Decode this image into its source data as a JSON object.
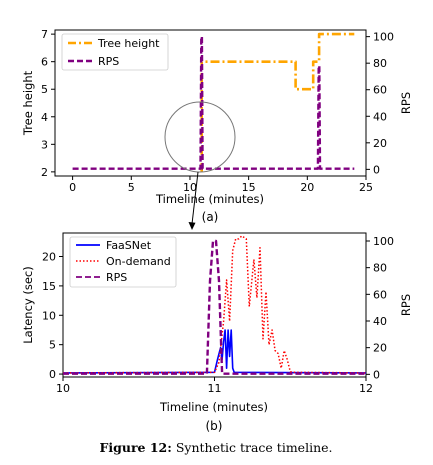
{
  "caption": {
    "label": "Figure 12:",
    "text": " Synthetic trace timeline."
  },
  "colors": {
    "tree_height": "#FFA500",
    "rps": "#800080",
    "faasnet": "#0000FF",
    "on_demand": "#FF0000"
  },
  "chart_data": [
    {
      "type": "line",
      "panel_label": "(a)",
      "xlabel": "Timeline (minutes)",
      "ylabel": "Tree height",
      "y2label": "RPS",
      "xlim": [
        -1.5,
        25
      ],
      "ylim": [
        1.85,
        7.15
      ],
      "y2lim": [
        -5,
        105
      ],
      "xticks": [
        0,
        5,
        10,
        15,
        20,
        25
      ],
      "yticks": [
        2,
        3,
        4,
        5,
        6,
        7
      ],
      "y2ticks": [
        0,
        20,
        40,
        60,
        80,
        100
      ],
      "legend_position": "top-left",
      "annotation": "circle around the RPS spike near minute 11, with an arrow pointing to panel (b)",
      "series": [
        {
          "name": "Tree height",
          "axis": "left",
          "style": "dash-dot",
          "color": "#FFA500",
          "x": [
            11,
            11,
            19,
            19,
            20.5,
            20.5,
            21,
            21,
            24
          ],
          "y": [
            2,
            6,
            6,
            5,
            5,
            6,
            6,
            7,
            7
          ]
        },
        {
          "name": "RPS",
          "axis": "right",
          "style": "dashed",
          "color": "#800080",
          "x": [
            0,
            10.9,
            10.97,
            11.02,
            11.08,
            20.9,
            20.97,
            21.02,
            21.08,
            24
          ],
          "y": [
            0.5,
            0.5,
            100,
            100,
            0.5,
            0.5,
            78,
            78,
            0.5,
            0.5
          ]
        }
      ]
    },
    {
      "type": "line",
      "panel_label": "(b)",
      "xlabel": "Timeline (minutes)",
      "ylabel": "Latency (sec)",
      "y2label": "RPS",
      "xlim": [
        10,
        12
      ],
      "ylim": [
        -0.5,
        24
      ],
      "y2lim": [
        -2,
        106
      ],
      "xticks": [
        10,
        11,
        12
      ],
      "yticks": [
        0,
        5,
        10,
        15,
        20
      ],
      "y2ticks": [
        0,
        20,
        40,
        60,
        80,
        100
      ],
      "legend_position": "top-left",
      "series": [
        {
          "name": "FaaSNet",
          "axis": "left",
          "style": "solid",
          "color": "#0000FF",
          "x": [
            10,
            11.0,
            11.02,
            11.04,
            11.05,
            11.06,
            11.07,
            11.08,
            11.09,
            11.1,
            11.11,
            11.12,
            11.13,
            12
          ],
          "y": [
            0.2,
            0.3,
            2.5,
            4.5,
            2.5,
            5.5,
            7.5,
            1.0,
            7.5,
            3.0,
            7.5,
            1.0,
            0.3,
            0.2
          ]
        },
        {
          "name": "On-demand",
          "axis": "left",
          "style": "dotted",
          "color": "#FF0000",
          "x": [
            10,
            11.0,
            11.03,
            11.06,
            11.08,
            11.1,
            11.12,
            11.14,
            11.16,
            11.18,
            11.21,
            11.23,
            11.26,
            11.28,
            11.3,
            11.32,
            11.34,
            11.36,
            11.38,
            11.4,
            11.42,
            11.44,
            11.46,
            11.48,
            11.5,
            11.52,
            12
          ],
          "y": [
            0.2,
            0.3,
            2.0,
            9.0,
            16.0,
            9.0,
            21.0,
            23.0,
            23.0,
            23.5,
            23.0,
            11.5,
            19.5,
            13.0,
            21.5,
            6.0,
            14.0,
            5.0,
            7.5,
            4.0,
            3.5,
            1.0,
            4.0,
            2.5,
            0.4,
            0.3,
            0.2
          ]
        },
        {
          "name": "RPS",
          "axis": "right",
          "style": "dashed",
          "color": "#800080",
          "x": [
            10,
            10.95,
            10.97,
            10.99,
            11.01,
            11.03,
            11.05,
            12
          ],
          "y": [
            0.5,
            0.5,
            70,
            100,
            100,
            70,
            0.5,
            0.5
          ]
        }
      ]
    }
  ]
}
